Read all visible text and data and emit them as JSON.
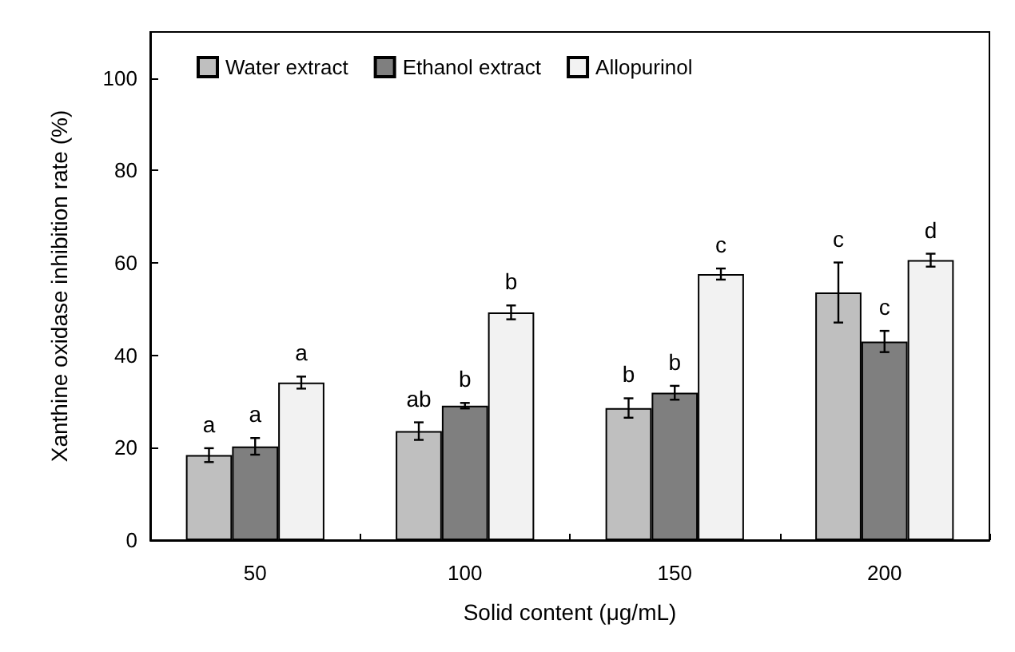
{
  "chart_data": {
    "type": "bar",
    "xlabel": "Solid content (μg/mL)",
    "ylabel": "Xanthine oxidase inhibition rate (%)",
    "categories": [
      "50",
      "100",
      "150",
      "200"
    ],
    "series": [
      {
        "name": "Water extract",
        "color": "#bfbfbf",
        "values": [
          18.4,
          23.6,
          28.6,
          53.6
        ],
        "errors": [
          1.5,
          1.9,
          2.1,
          6.5
        ],
        "value_labels": [
          "a",
          "ab",
          "b",
          "c"
        ]
      },
      {
        "name": "Ethanol extract",
        "color": "#7f7f7f",
        "values": [
          20.3,
          29.1,
          31.9,
          43.0
        ],
        "errors": [
          1.8,
          0.6,
          1.5,
          2.3
        ],
        "value_labels": [
          "a",
          "b",
          "b",
          "c"
        ]
      },
      {
        "name": "Allopurinol",
        "color": "#f2f2f2",
        "values": [
          34.1,
          49.3,
          57.6,
          60.6
        ],
        "errors": [
          1.3,
          1.5,
          1.2,
          1.4
        ],
        "value_labels": [
          "a",
          "b",
          "c",
          "d"
        ]
      }
    ],
    "ylim": [
      0,
      110
    ],
    "yticks": [
      0,
      20,
      40,
      60,
      80,
      100
    ],
    "grid": false,
    "legend": "top left"
  }
}
